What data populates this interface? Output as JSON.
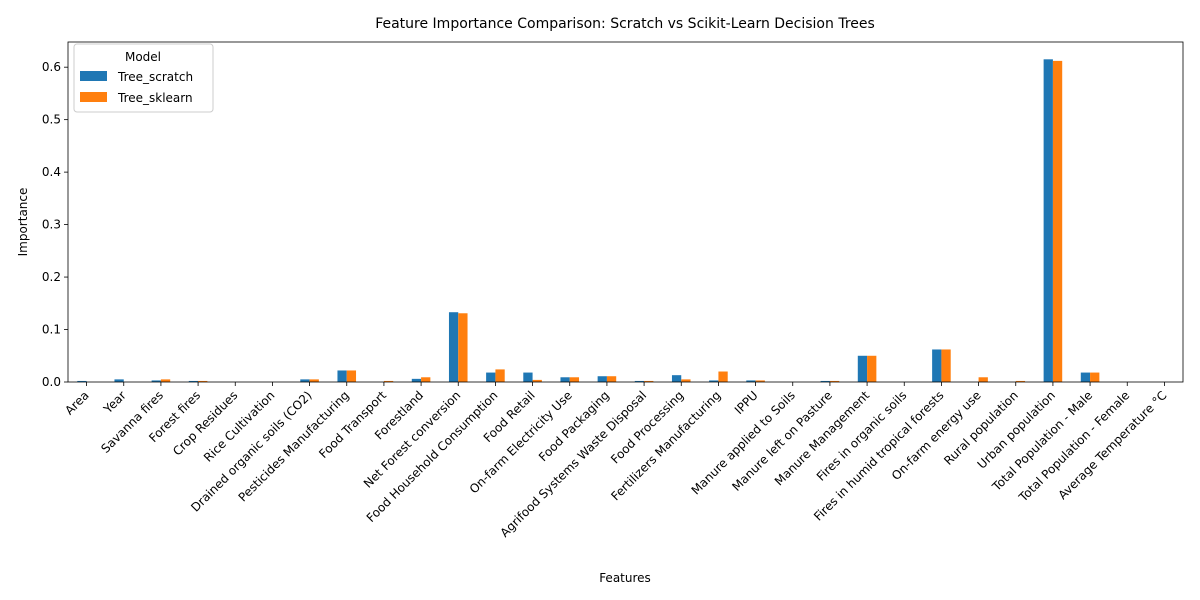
{
  "chart_data": {
    "type": "bar",
    "title": "Feature Importance Comparison: Scratch vs Scikit-Learn Decision Trees",
    "xlabel": "Features",
    "ylabel": "Importance",
    "ylim": [
      0,
      0.648
    ],
    "yticks": [
      0.0,
      0.1,
      0.2,
      0.3,
      0.4,
      0.5,
      0.6
    ],
    "ytick_labels": [
      "0.0",
      "0.1",
      "0.2",
      "0.3",
      "0.4",
      "0.5",
      "0.6"
    ],
    "grid": false,
    "legend": {
      "title": "Model",
      "placement": "top-left"
    },
    "categories": [
      "Area",
      "Year",
      "Savanna fires",
      "Forest fires",
      "Crop Residues",
      "Rice Cultivation",
      "Drained organic soils (CO2)",
      "Pesticides Manufacturing",
      "Food Transport",
      "Forestland",
      "Net Forest conversion",
      "Food Household Consumption",
      "Food Retail",
      "On-farm Electricity Use",
      "Food Packaging",
      "Agrifood Systems Waste Disposal",
      "Food Processing",
      "Fertilizers Manufacturing",
      "IPPU",
      "Manure applied to Soils",
      "Manure left on Pasture",
      "Manure Management",
      "Fires in organic soils",
      "Fires in humid tropical forests",
      "On-farm energy use",
      "Rural population",
      "Urban population",
      "Total Population - Male",
      "Total Population - Female",
      "Average Temperature °C"
    ],
    "series": [
      {
        "name": "Tree_scratch",
        "color": "#1f77b4",
        "values": [
          0.002,
          0.005,
          0.003,
          0.002,
          0.0,
          0.0,
          0.005,
          0.022,
          0.0,
          0.006,
          0.133,
          0.018,
          0.018,
          0.009,
          0.011,
          0.002,
          0.013,
          0.003,
          0.003,
          0.0,
          0.002,
          0.05,
          0.0,
          0.062,
          0.0,
          0.0,
          0.615,
          0.018,
          0.0,
          0.0
        ]
      },
      {
        "name": "Tree_sklearn",
        "color": "#ff7f0e",
        "values": [
          0.0,
          0.0,
          0.005,
          0.002,
          0.0,
          0.0,
          0.005,
          0.022,
          0.002,
          0.009,
          0.131,
          0.024,
          0.004,
          0.009,
          0.011,
          0.002,
          0.005,
          0.02,
          0.003,
          0.0,
          0.002,
          0.05,
          0.0,
          0.062,
          0.009,
          0.002,
          0.612,
          0.018,
          0.0,
          0.0
        ]
      }
    ]
  }
}
